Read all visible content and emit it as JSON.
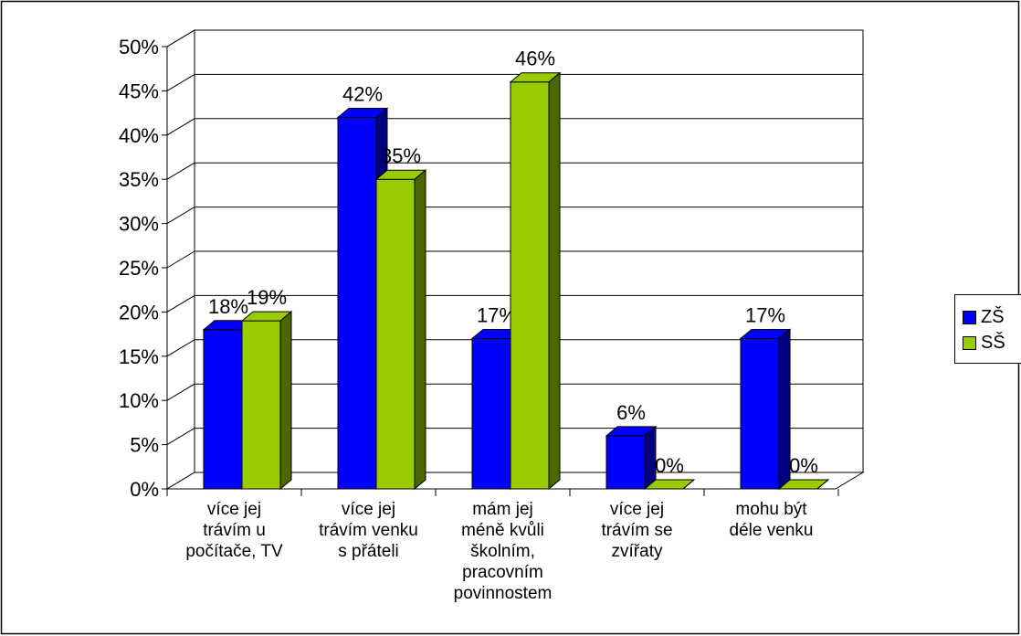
{
  "chart_data": {
    "type": "bar",
    "categories": [
      "více jej trávím u počítače, TV",
      "více jej trávím venku s přáteli",
      "mám jej méně kvůli školním, pracovním povinnostem",
      "více jej trávím se zvířaty",
      "mohu být déle venku"
    ],
    "category_lines": [
      [
        "více jej",
        "trávím u",
        "počítače, TV"
      ],
      [
        "více jej",
        "trávím venku",
        "s přáteli"
      ],
      [
        "mám jej",
        "méně kvůli",
        "školním,",
        "pracovním",
        "povinnostem"
      ],
      [
        "více jej",
        "trávím se",
        "zvířaty"
      ],
      [
        "mohu být",
        "déle venku"
      ]
    ],
    "series": [
      {
        "name": "ZŠ",
        "values": [
          18,
          42,
          17,
          6,
          17
        ],
        "labels": [
          "18%",
          "42%",
          "17%",
          "6%",
          "17%"
        ],
        "color": "#0000FF",
        "side_color": "#000080"
      },
      {
        "name": "SŠ",
        "values": [
          19,
          35,
          46,
          0,
          0
        ],
        "labels": [
          "19%",
          "35%",
          "46%",
          "0%",
          "0%"
        ],
        "color": "#99CC00",
        "side_color": "#4D6600"
      }
    ],
    "ylim": [
      0,
      50
    ],
    "yticks": [
      "0%",
      "5%",
      "10%",
      "15%",
      "20%",
      "25%",
      "30%",
      "35%",
      "40%",
      "45%",
      "50%"
    ],
    "grid": true,
    "legend_position": "right"
  }
}
